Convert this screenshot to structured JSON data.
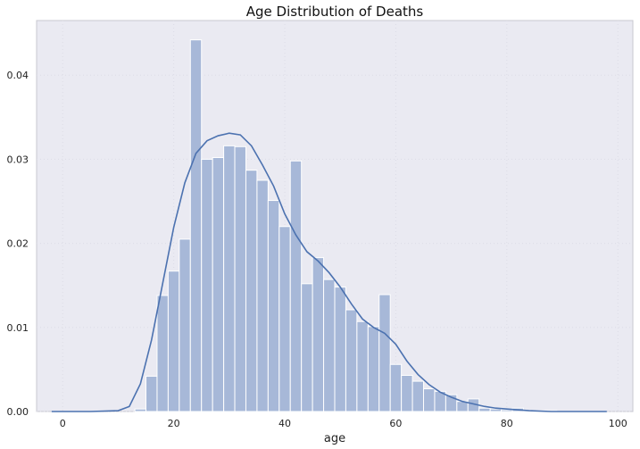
{
  "chart_data": {
    "type": "bar",
    "title": "Age Distribution of Deaths",
    "xlabel": "age",
    "ylabel": "",
    "xlim": [
      -4.7,
      102.7
    ],
    "ylim": [
      0,
      0.0465
    ],
    "x_ticks": [
      0,
      20,
      40,
      60,
      80,
      100
    ],
    "y_ticks": [
      0.0,
      0.01,
      0.02,
      0.03,
      0.04
    ],
    "y_tick_labels": [
      "0.00",
      "0.01",
      "0.02",
      "0.03",
      "0.04"
    ],
    "x_tick_labels": [
      "0",
      "20",
      "40",
      "60",
      "80",
      "100"
    ],
    "grid": true,
    "colors": {
      "background": "#eaeaf2",
      "bar": "#a7b8d8",
      "kde_line": "#4c72b0",
      "grid": "#dcdce6",
      "frame": "#c8c8d0"
    },
    "histogram": {
      "series_type": "bar",
      "bin_start": 13,
      "bin_width": 2,
      "values": [
        0.0003,
        0.0042,
        0.0138,
        0.0167,
        0.0205,
        0.0442,
        0.03,
        0.0302,
        0.0316,
        0.0315,
        0.0287,
        0.0275,
        0.0251,
        0.022,
        0.0298,
        0.0152,
        0.0183,
        0.0157,
        0.0148,
        0.0121,
        0.0107,
        0.0101,
        0.0139,
        0.0056,
        0.0043,
        0.0036,
        0.0027,
        0.0024,
        0.002,
        0.0012,
        0.0015,
        0.0004,
        0.0003,
        0.0002,
        0.0004,
        0.0001,
        0.0001,
        0.0001
      ]
    },
    "kde": {
      "series_type": "line",
      "x": [
        -2,
        5,
        10,
        12,
        14,
        16,
        18,
        20,
        22,
        24,
        26,
        28,
        30,
        32,
        34,
        36,
        38,
        40,
        42,
        44,
        46,
        48,
        50,
        52,
        54,
        56,
        58,
        60,
        62,
        64,
        66,
        68,
        70,
        72,
        74,
        76,
        78,
        80,
        84,
        88,
        92,
        98
      ],
      "y": [
        0.0,
        0.0,
        0.0001,
        0.0006,
        0.0033,
        0.0085,
        0.0152,
        0.0219,
        0.0272,
        0.0307,
        0.0322,
        0.0328,
        0.0331,
        0.0329,
        0.0316,
        0.0293,
        0.0268,
        0.0235,
        0.021,
        0.019,
        0.0179,
        0.0165,
        0.0148,
        0.0128,
        0.011,
        0.01,
        0.0093,
        0.008,
        0.006,
        0.0044,
        0.0032,
        0.0023,
        0.0017,
        0.0012,
        0.0009,
        0.0006,
        0.0004,
        0.0003,
        0.0001,
        0.0,
        0.0,
        0.0
      ]
    }
  }
}
